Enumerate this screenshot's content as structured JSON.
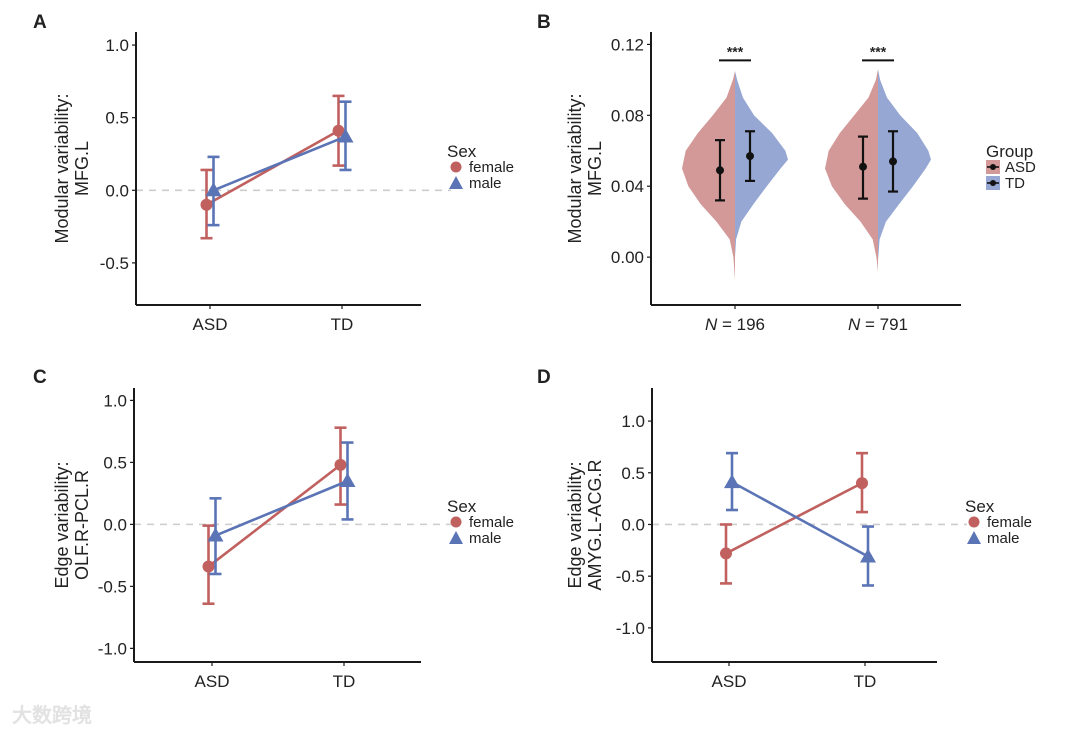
{
  "colors": {
    "female": "#c0605f",
    "male": "#5b74b5",
    "asd_fill": "#d39998",
    "td_fill": "#95a7d2",
    "axis": "#1a1a1a",
    "zero_line": "#cccccc",
    "errbar_b": "#111111"
  },
  "watermark": "大数跨境",
  "chart_data": [
    {
      "panel": "A",
      "type": "line",
      "ylabel": [
        "Modular variability:",
        "MFG.L"
      ],
      "categories": [
        "ASD",
        "TD"
      ],
      "yticks": [
        1.0,
        0.5,
        0.0,
        -0.5
      ],
      "ytick_labels": [
        "1.0",
        "0.5",
        "0.0",
        "-0.5"
      ],
      "ylim": [
        -0.79,
        1.09
      ],
      "zero_line": true,
      "legend": {
        "title": "Sex",
        "position": "right",
        "entries": [
          "female",
          "male"
        ]
      },
      "series": [
        {
          "name": "female",
          "marker": "circle",
          "values": [
            -0.1,
            0.41
          ],
          "lower": [
            -0.33,
            0.17
          ],
          "upper": [
            0.14,
            0.65
          ]
        },
        {
          "name": "male",
          "marker": "triangle",
          "values": [
            0.0,
            0.37
          ],
          "lower": [
            -0.24,
            0.14
          ],
          "upper": [
            0.23,
            0.61
          ]
        }
      ]
    },
    {
      "panel": "B",
      "type": "violin",
      "ylabel": [
        "Modular variability:",
        "MFG.L"
      ],
      "categories": [
        "N = 196",
        "N = 791"
      ],
      "category_parts": [
        {
          "n": "N",
          "rest": " = 196"
        },
        {
          "n": "N",
          "rest": " = 791"
        }
      ],
      "yticks": [
        0.12,
        0.08,
        0.04,
        0.0
      ],
      "ytick_labels": [
        "0.12",
        "0.08",
        "0.04",
        "0.00"
      ],
      "ylim": [
        -0.027,
        0.127
      ],
      "legend": {
        "title": "Group",
        "position": "right",
        "entries": [
          "ASD",
          "TD"
        ]
      },
      "significance": [
        {
          "label": "***",
          "y": 0.111
        },
        {
          "label": "***",
          "y": 0.111
        }
      ],
      "groups": [
        {
          "ASD": {
            "mean": 0.049,
            "lower": 0.032,
            "upper": 0.066,
            "density_y": [
              -0.013,
              0.0,
              0.01,
              0.02,
              0.03,
              0.04,
              0.05,
              0.06,
              0.07,
              0.08,
              0.09,
              0.1,
              0.105
            ],
            "density": [
              0,
              0.03,
              0.1,
              0.35,
              0.65,
              0.88,
              1.0,
              0.93,
              0.7,
              0.42,
              0.16,
              0.04,
              0
            ]
          },
          "TD": {
            "mean": 0.057,
            "lower": 0.043,
            "upper": 0.071,
            "density_y": [
              0.0,
              0.01,
              0.02,
              0.03,
              0.04,
              0.05,
              0.055,
              0.06,
              0.07,
              0.08,
              0.09,
              0.1,
              0.105
            ],
            "density": [
              0,
              0.02,
              0.12,
              0.35,
              0.6,
              0.86,
              1.0,
              0.95,
              0.7,
              0.36,
              0.15,
              0.04,
              0
            ]
          }
        },
        {
          "ASD": {
            "mean": 0.051,
            "lower": 0.033,
            "upper": 0.068,
            "density_y": [
              -0.008,
              0.0,
              0.01,
              0.02,
              0.03,
              0.04,
              0.05,
              0.06,
              0.07,
              0.08,
              0.09,
              0.1,
              0.106
            ],
            "density": [
              0,
              0.03,
              0.1,
              0.33,
              0.63,
              0.87,
              1.0,
              0.93,
              0.72,
              0.45,
              0.18,
              0.04,
              0
            ]
          },
          "TD": {
            "mean": 0.054,
            "lower": 0.037,
            "upper": 0.071,
            "density_y": [
              -0.002,
              0.01,
              0.02,
              0.03,
              0.04,
              0.05,
              0.055,
              0.06,
              0.07,
              0.08,
              0.09,
              0.1,
              0.106
            ],
            "density": [
              0,
              0.03,
              0.15,
              0.4,
              0.66,
              0.9,
              1.0,
              0.95,
              0.74,
              0.42,
              0.17,
              0.04,
              0
            ]
          }
        }
      ]
    },
    {
      "panel": "C",
      "type": "line",
      "ylabel": [
        "Edge variability:",
        "OLF.R-PCL.R"
      ],
      "categories": [
        "ASD",
        "TD"
      ],
      "yticks": [
        1.0,
        0.5,
        0.0,
        -0.5,
        -1.0
      ],
      "ytick_labels": [
        "1.0",
        "0.5",
        "0.0",
        "-0.5",
        "-1.0"
      ],
      "ylim": [
        -1.11,
        1.1
      ],
      "zero_line": true,
      "legend": {
        "title": "Sex",
        "position": "right",
        "entries": [
          "female",
          "male"
        ]
      },
      "series": [
        {
          "name": "female",
          "marker": "circle",
          "values": [
            -0.34,
            0.48
          ],
          "lower": [
            -0.64,
            0.16
          ],
          "upper": [
            -0.01,
            0.78
          ]
        },
        {
          "name": "male",
          "marker": "triangle",
          "values": [
            -0.09,
            0.35
          ],
          "lower": [
            -0.4,
            0.04
          ],
          "upper": [
            0.21,
            0.66
          ]
        }
      ]
    },
    {
      "panel": "D",
      "type": "line",
      "ylabel": [
        "Edge variability:",
        "AMYG.L-ACG.R"
      ],
      "categories": [
        "ASD",
        "TD"
      ],
      "yticks": [
        1.0,
        0.5,
        0.0,
        -0.5,
        -1.0
      ],
      "ytick_labels": [
        "1.0",
        "0.5",
        "0.0",
        "-0.5",
        "-1.0"
      ],
      "ylim": [
        -1.33,
        1.32
      ],
      "zero_line": true,
      "legend": {
        "title": "Sex",
        "position": "right",
        "entries": [
          "female",
          "male"
        ]
      },
      "series": [
        {
          "name": "female",
          "marker": "circle",
          "values": [
            -0.28,
            0.4
          ],
          "lower": [
            -0.57,
            0.12
          ],
          "upper": [
            0.0,
            0.69
          ]
        },
        {
          "name": "male",
          "marker": "triangle",
          "values": [
            0.41,
            -0.31
          ],
          "lower": [
            0.14,
            -0.59
          ],
          "upper": [
            0.69,
            -0.02
          ]
        }
      ]
    }
  ]
}
